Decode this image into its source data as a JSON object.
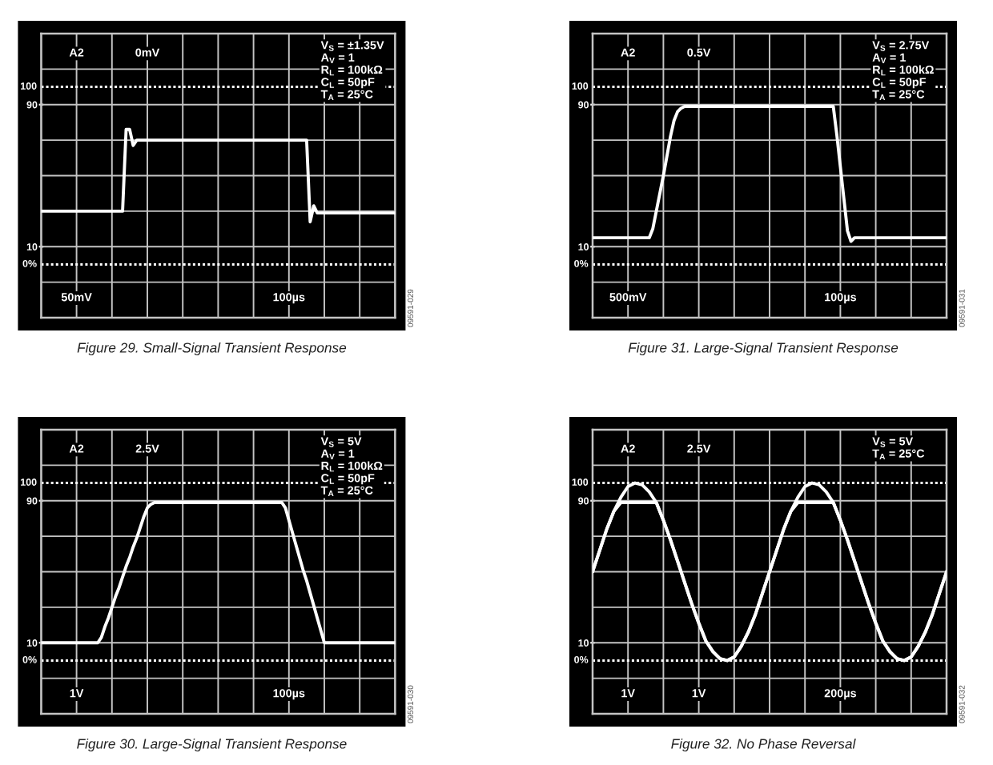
{
  "chart_data": [
    {
      "type": "line",
      "title": "Figure 29. Small-Signal Transient Response",
      "annotations": [
        "A2",
        "0mV",
        "V$_{S}$ = ±1.35V\nA$_{V}$ = 1\nR$_{L}$ = 100kΩ\nC$_{L}$ = 50pF\nT$_{A}$ = 25°C",
        "50mV",
        "100µs",
        "09591-029"
      ],
      "categories": [
        null,
        null,
        null,
        null,
        null,
        null,
        null,
        null,
        null,
        null,
        null,
        null,
        null,
        null,
        null,
        null,
        null,
        null,
        null,
        null,
        null,
        null,
        null,
        null,
        null,
        null,
        null,
        null,
        null,
        null,
        null,
        null,
        null,
        null,
        null,
        null,
        null,
        null,
        null,
        null,
        null,
        null,
        null,
        null,
        null,
        null,
        null,
        null,
        null,
        null,
        null,
        null,
        null,
        null,
        null,
        null,
        null,
        null,
        null,
        null,
        null,
        null,
        null,
        null,
        null,
        null,
        null,
        null,
        null,
        null,
        null,
        null,
        null,
        null,
        null,
        null,
        null,
        null,
        null,
        null,
        null,
        null,
        null,
        null,
        null,
        null,
        null,
        null,
        null,
        null,
        null,
        null,
        null,
        null,
        null,
        null,
        null,
        null,
        null,
        null,
        null
      ],
      "series": [
        {
          "color": "#ffffff",
          "values": [
            30,
            30,
            30,
            30,
            30,
            30,
            30,
            30,
            30,
            30,
            30,
            30,
            30,
            30,
            30,
            30,
            30,
            30,
            30,
            30,
            30,
            30,
            30,
            30,
            76,
            76,
            67,
            70,
            70,
            70,
            70,
            70,
            70,
            70,
            70,
            70,
            70,
            70,
            70,
            70,
            70,
            70,
            70,
            70,
            70,
            70,
            70,
            70,
            70,
            70,
            70,
            70,
            70,
            70,
            70,
            70,
            70,
            70,
            70,
            70,
            70,
            70,
            70,
            70,
            70,
            70,
            70,
            70,
            70,
            70,
            70,
            70,
            70,
            70,
            70,
            70,
            24,
            33,
            29,
            29,
            29,
            29,
            29,
            29,
            29,
            29,
            29,
            29,
            29,
            29,
            29,
            29,
            29,
            29,
            29,
            29,
            29,
            29,
            29,
            29,
            29
          ]
        }
      ],
      "ylim": [
        -30,
        130
      ],
      "yticks": [
        90,
        10
      ],
      "tick_labels": "y",
      "grid": true,
      "ref_lines": [
        {
          "axis": "y",
          "value": 100,
          "label": "100",
          "line_style": "dotted",
          "color": "#ffffff"
        },
        {
          "axis": "y",
          "value": 0,
          "label": "0%",
          "line_style": "dotted",
          "color": "#ffffff"
        }
      ]
    },
    {
      "type": "line",
      "title": "Figure 31. Large-Signal Transient Response",
      "annotations": [
        "A2",
        "0.5V",
        "V$_{S}$ = 2.75V\nA$_{V}$ = 1\nR$_{L}$ = 100kΩ\nC$_{L}$ = 50pF\nT$_{A}$ = 25°C",
        "500mV",
        "100µs",
        "09591-031"
      ],
      "categories": [
        null,
        null,
        null,
        null,
        null,
        null,
        null,
        null,
        null,
        null,
        null,
        null,
        null,
        null,
        null,
        null,
        null,
        null,
        null,
        null,
        null,
        null,
        null,
        null,
        null,
        null,
        null,
        null,
        null,
        null,
        null,
        null,
        null,
        null,
        null,
        null,
        null,
        null,
        null,
        null,
        null,
        null,
        null,
        null,
        null,
        null,
        null,
        null,
        null,
        null,
        null,
        null,
        null,
        null,
        null,
        null,
        null,
        null,
        null,
        null,
        null,
        null,
        null,
        null,
        null,
        null,
        null,
        null,
        null,
        null,
        null,
        null,
        null,
        null,
        null,
        null,
        null,
        null,
        null,
        null,
        null,
        null,
        null,
        null,
        null,
        null,
        null,
        null,
        null,
        null,
        null,
        null,
        null,
        null,
        null,
        null,
        null,
        null,
        null,
        null,
        null
      ],
      "series": [
        {
          "color": "#ffffff",
          "values": [
            15,
            15,
            15,
            15,
            15,
            15,
            15,
            15,
            15,
            15,
            15,
            15,
            15,
            15,
            15,
            15,
            15,
            20,
            30,
            40,
            50,
            61,
            72,
            81,
            86,
            88,
            89,
            89,
            89,
            89,
            89,
            89,
            89,
            89,
            89,
            89,
            89,
            89,
            89,
            89,
            89,
            89,
            89,
            89,
            89,
            89,
            89,
            89,
            89,
            89,
            89,
            89,
            89,
            89,
            89,
            89,
            89,
            89,
            89,
            89,
            89,
            89,
            89,
            89,
            89,
            89,
            89,
            89,
            89,
            73,
            55,
            37,
            19,
            13,
            15,
            15,
            15,
            15,
            15,
            15,
            15,
            15,
            15,
            15,
            15,
            15,
            15,
            15,
            15,
            15,
            15,
            15,
            15,
            15,
            15,
            15,
            15,
            15,
            15,
            15,
            15
          ]
        }
      ],
      "ylim": [
        -30,
        130
      ],
      "yticks": [
        90,
        10
      ],
      "tick_labels": "y",
      "grid": true,
      "ref_lines": [
        {
          "axis": "y",
          "value": 100,
          "label": "100",
          "line_style": "dotted",
          "color": "#ffffff"
        },
        {
          "axis": "y",
          "value": 0,
          "label": "0%",
          "line_style": "dotted",
          "color": "#ffffff"
        }
      ]
    },
    {
      "type": "line",
      "title": "Figure 30. Large-Signal Transient Response",
      "annotations": [
        "A2",
        "2.5V",
        "V$_{S}$ = 5V\nA$_{V}$ = 1\nR$_{L}$ = 100kΩ\nC$_{L}$ = 50pF\nT$_{A}$ = 25°C",
        "1V",
        "100µs",
        "09591-030"
      ],
      "categories": [
        null,
        null,
        null,
        null,
        null,
        null,
        null,
        null,
        null,
        null,
        null,
        null,
        null,
        null,
        null,
        null,
        null,
        null,
        null,
        null,
        null,
        null,
        null,
        null,
        null,
        null,
        null,
        null,
        null,
        null,
        null,
        null,
        null,
        null,
        null,
        null,
        null,
        null,
        null,
        null,
        null,
        null,
        null,
        null,
        null,
        null,
        null,
        null,
        null,
        null,
        null,
        null,
        null,
        null,
        null,
        null,
        null,
        null,
        null,
        null,
        null,
        null,
        null,
        null,
        null,
        null,
        null,
        null,
        null,
        null,
        null,
        null,
        null,
        null,
        null,
        null,
        null,
        null,
        null,
        null,
        null,
        null,
        null,
        null,
        null,
        null,
        null,
        null,
        null,
        null,
        null,
        null,
        null,
        null,
        null,
        null,
        null,
        null,
        null,
        null,
        null
      ],
      "series": [
        {
          "color": "#ffffff",
          "values": [
            10,
            10,
            10,
            10,
            10,
            10,
            10,
            10,
            10,
            10,
            10,
            10,
            10,
            10,
            10,
            10,
            10,
            13,
            19,
            24,
            30,
            36,
            41,
            47,
            53,
            58,
            64,
            69,
            75,
            81,
            86,
            88,
            89,
            89,
            89,
            89,
            89,
            89,
            89,
            89,
            89,
            89,
            89,
            89,
            89,
            89,
            89,
            89,
            89,
            89,
            89,
            89,
            89,
            89,
            89,
            89,
            89,
            89,
            89,
            89,
            89,
            89,
            89,
            89,
            89,
            89,
            89,
            89,
            89,
            86,
            79,
            72,
            65,
            58,
            51,
            45,
            38,
            31,
            24,
            17,
            10,
            10,
            10,
            10,
            10,
            10,
            10,
            10,
            10,
            10,
            10,
            10,
            10,
            10,
            10,
            10,
            10,
            10,
            10,
            10,
            10
          ]
        }
      ],
      "ylim": [
        -30,
        130
      ],
      "yticks": [
        90,
        10
      ],
      "tick_labels": "y",
      "grid": true,
      "ref_lines": [
        {
          "axis": "y",
          "value": 100,
          "label": "100",
          "line_style": "dotted",
          "color": "#ffffff"
        },
        {
          "axis": "y",
          "value": 0,
          "label": "0%",
          "line_style": "dotted",
          "color": "#ffffff"
        }
      ]
    },
    {
      "type": "line",
      "title": "Figure 32. No Phase Reversal",
      "annotations": [
        "A2",
        "2.5V",
        "V$_{S}$ = 5V\nT$_{A}$ = 25°C",
        "1V",
        "1V",
        "200µs",
        "09591-032"
      ],
      "categories": [
        null,
        null,
        null,
        null,
        null,
        null,
        null,
        null,
        null,
        null,
        null,
        null,
        null,
        null,
        null,
        null,
        null,
        null,
        null,
        null,
        null,
        null,
        null,
        null,
        null,
        null,
        null,
        null,
        null,
        null,
        null,
        null,
        null,
        null,
        null,
        null,
        null,
        null,
        null,
        null,
        null,
        null,
        null,
        null,
        null,
        null,
        null,
        null,
        null,
        null,
        null
      ],
      "series": [
        {
          "color": "#ffffff",
          "values": [
            50,
            62,
            74,
            84,
            92,
            98,
            100,
            99,
            95,
            89,
            79,
            68,
            56,
            44,
            32,
            21,
            11,
            5,
            1,
            0,
            2,
            8,
            16,
            26,
            38,
            50,
            62,
            74,
            84,
            92,
            98,
            100,
            99,
            95,
            89,
            79,
            68,
            56,
            44,
            32,
            21,
            11,
            5,
            1,
            0,
            2,
            8,
            16,
            26,
            38,
            50
          ]
        },
        {
          "color": "#ffffff",
          "values": [
            50,
            62,
            74,
            84,
            89,
            89,
            89,
            89,
            89,
            89,
            79,
            68,
            56,
            44,
            32,
            21,
            11,
            5,
            1,
            0,
            2,
            8,
            16,
            26,
            38,
            50,
            62,
            74,
            84,
            89,
            89,
            89,
            89,
            89,
            89,
            79,
            68,
            56,
            44,
            32,
            21,
            11,
            5,
            1,
            0,
            2,
            8,
            16,
            26,
            38,
            50
          ]
        }
      ],
      "ylim": [
        -30,
        130
      ],
      "yticks": [
        90,
        10
      ],
      "tick_labels": "y",
      "grid": true,
      "ref_lines": [
        {
          "axis": "y",
          "value": 100,
          "label": "100",
          "line_style": "dotted",
          "color": "#ffffff"
        },
        {
          "axis": "y",
          "value": 0,
          "label": "0%",
          "line_style": "dotted",
          "color": "#ffffff"
        }
      ]
    }
  ]
}
